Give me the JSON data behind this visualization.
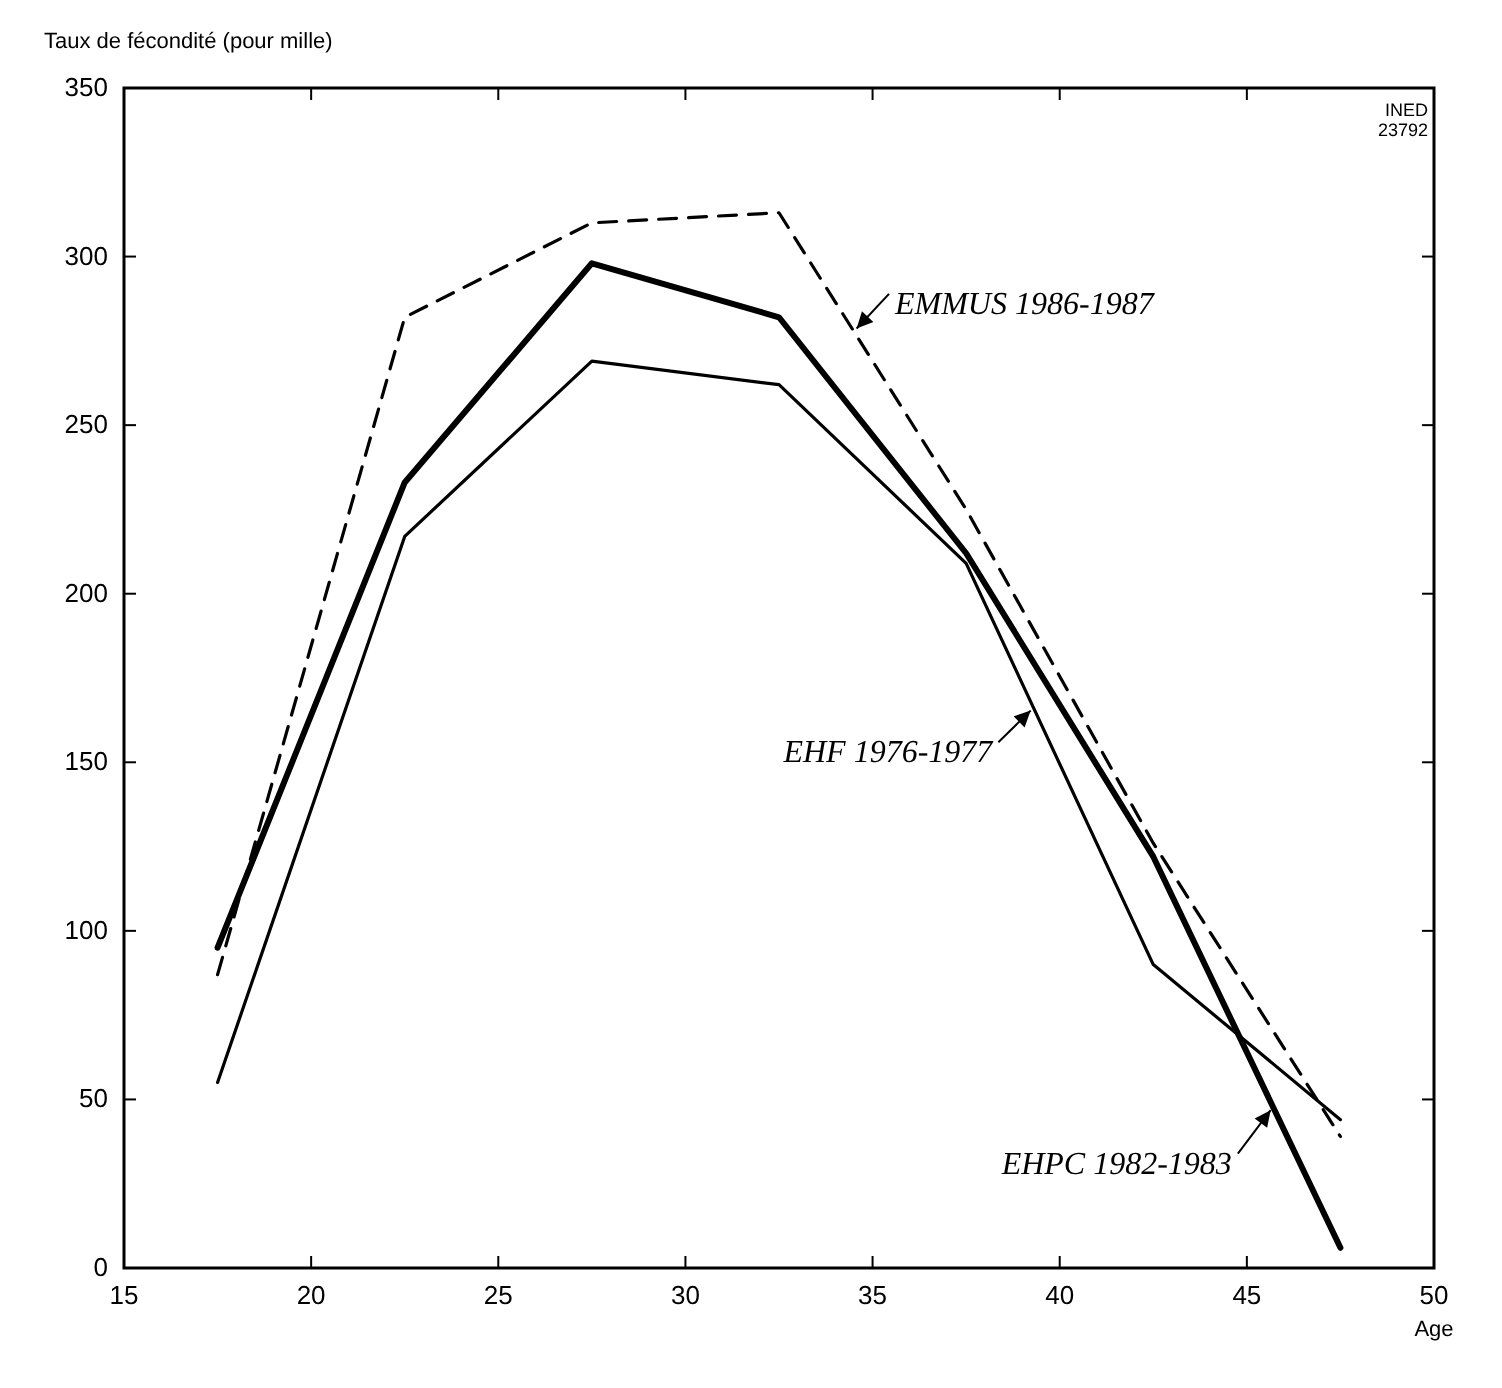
{
  "chart_data": {
    "type": "line",
    "ylabel": "Taux de fécondité (pour mille)",
    "xlabel": "Age",
    "annotations": [
      "INED\n23792"
    ],
    "xlim": [
      15,
      50
    ],
    "xticks": [
      15,
      20,
      25,
      30,
      35,
      40,
      45,
      50
    ],
    "ylim": [
      0,
      350
    ],
    "yticks": [
      0,
      50,
      100,
      150,
      200,
      250,
      300,
      350
    ],
    "x": [
      17.5,
      22.5,
      27.5,
      32.5,
      37.5,
      42.5,
      47.5
    ],
    "grid": false,
    "legend": "bottom right",
    "marker": "none",
    "series": [
      {
        "name": "EMMUS 1986-1987",
        "color": "#000000",
        "line_style": "dashed",
        "values": [
          87,
          282,
          310,
          313,
          225,
          126,
          39
        ]
      },
      {
        "name": "EHF 1976-1977",
        "color": "#000000",
        "line_style": "solid",
        "values": [
          55,
          217,
          269,
          262,
          209,
          90,
          44
        ]
      },
      {
        "name": "EHPC 1982-1983",
        "color": "#000000",
        "line_style": "solid",
        "values": [
          95,
          233,
          298,
          282,
          212,
          122,
          6
        ]
      }
    ]
  }
}
